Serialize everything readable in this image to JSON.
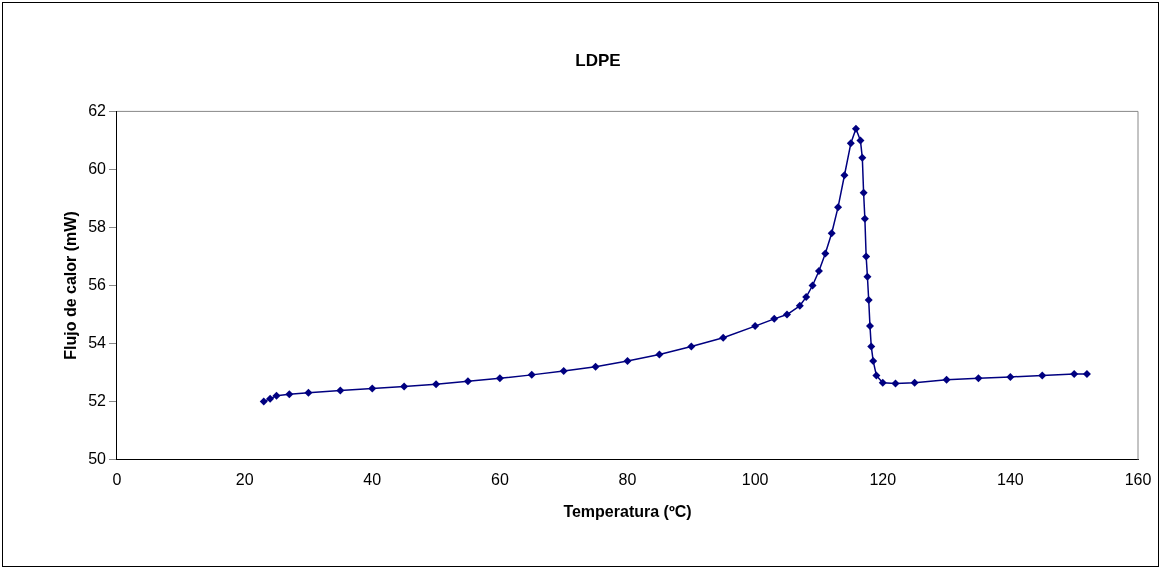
{
  "chart_data": {
    "type": "line",
    "title": "LDPE",
    "xlabel": "Temperatura (ºC)",
    "ylabel": "Flujo de calor (mW)",
    "xlim": [
      0,
      160
    ],
    "xticks": [
      0,
      20,
      40,
      60,
      80,
      100,
      120,
      140,
      160
    ],
    "ylim": [
      50,
      62
    ],
    "yticks": [
      50,
      52,
      54,
      56,
      58,
      60,
      62
    ],
    "grid": false,
    "legend": false,
    "marker": "diamond",
    "line_style": "solid",
    "series": [
      {
        "color": "#000080",
        "x": [
          23,
          24,
          25,
          27,
          30,
          35,
          40,
          45,
          50,
          55,
          60,
          65,
          70,
          75,
          80,
          85,
          90,
          95,
          100,
          103,
          105,
          107,
          108,
          109,
          110,
          111,
          112,
          113,
          114,
          115,
          115.8,
          116.5,
          116.8,
          117,
          117.2,
          117.4,
          117.6,
          117.8,
          118,
          118.2,
          118.5,
          119,
          120,
          122,
          125,
          130,
          135,
          140,
          145,
          150,
          152
        ],
        "values": [
          52.0,
          52.1,
          52.2,
          52.25,
          52.3,
          52.38,
          52.45,
          52.52,
          52.6,
          52.7,
          52.8,
          52.92,
          53.05,
          53.2,
          53.4,
          53.62,
          53.9,
          54.2,
          54.6,
          54.85,
          55.0,
          55.3,
          55.6,
          56.0,
          56.5,
          57.1,
          57.8,
          58.7,
          59.8,
          60.9,
          61.4,
          61.0,
          60.4,
          59.2,
          58.3,
          57.0,
          56.3,
          55.5,
          54.6,
          53.9,
          53.4,
          52.9,
          52.65,
          52.62,
          52.65,
          52.75,
          52.8,
          52.85,
          52.9,
          52.95,
          52.95
        ]
      }
    ]
  }
}
